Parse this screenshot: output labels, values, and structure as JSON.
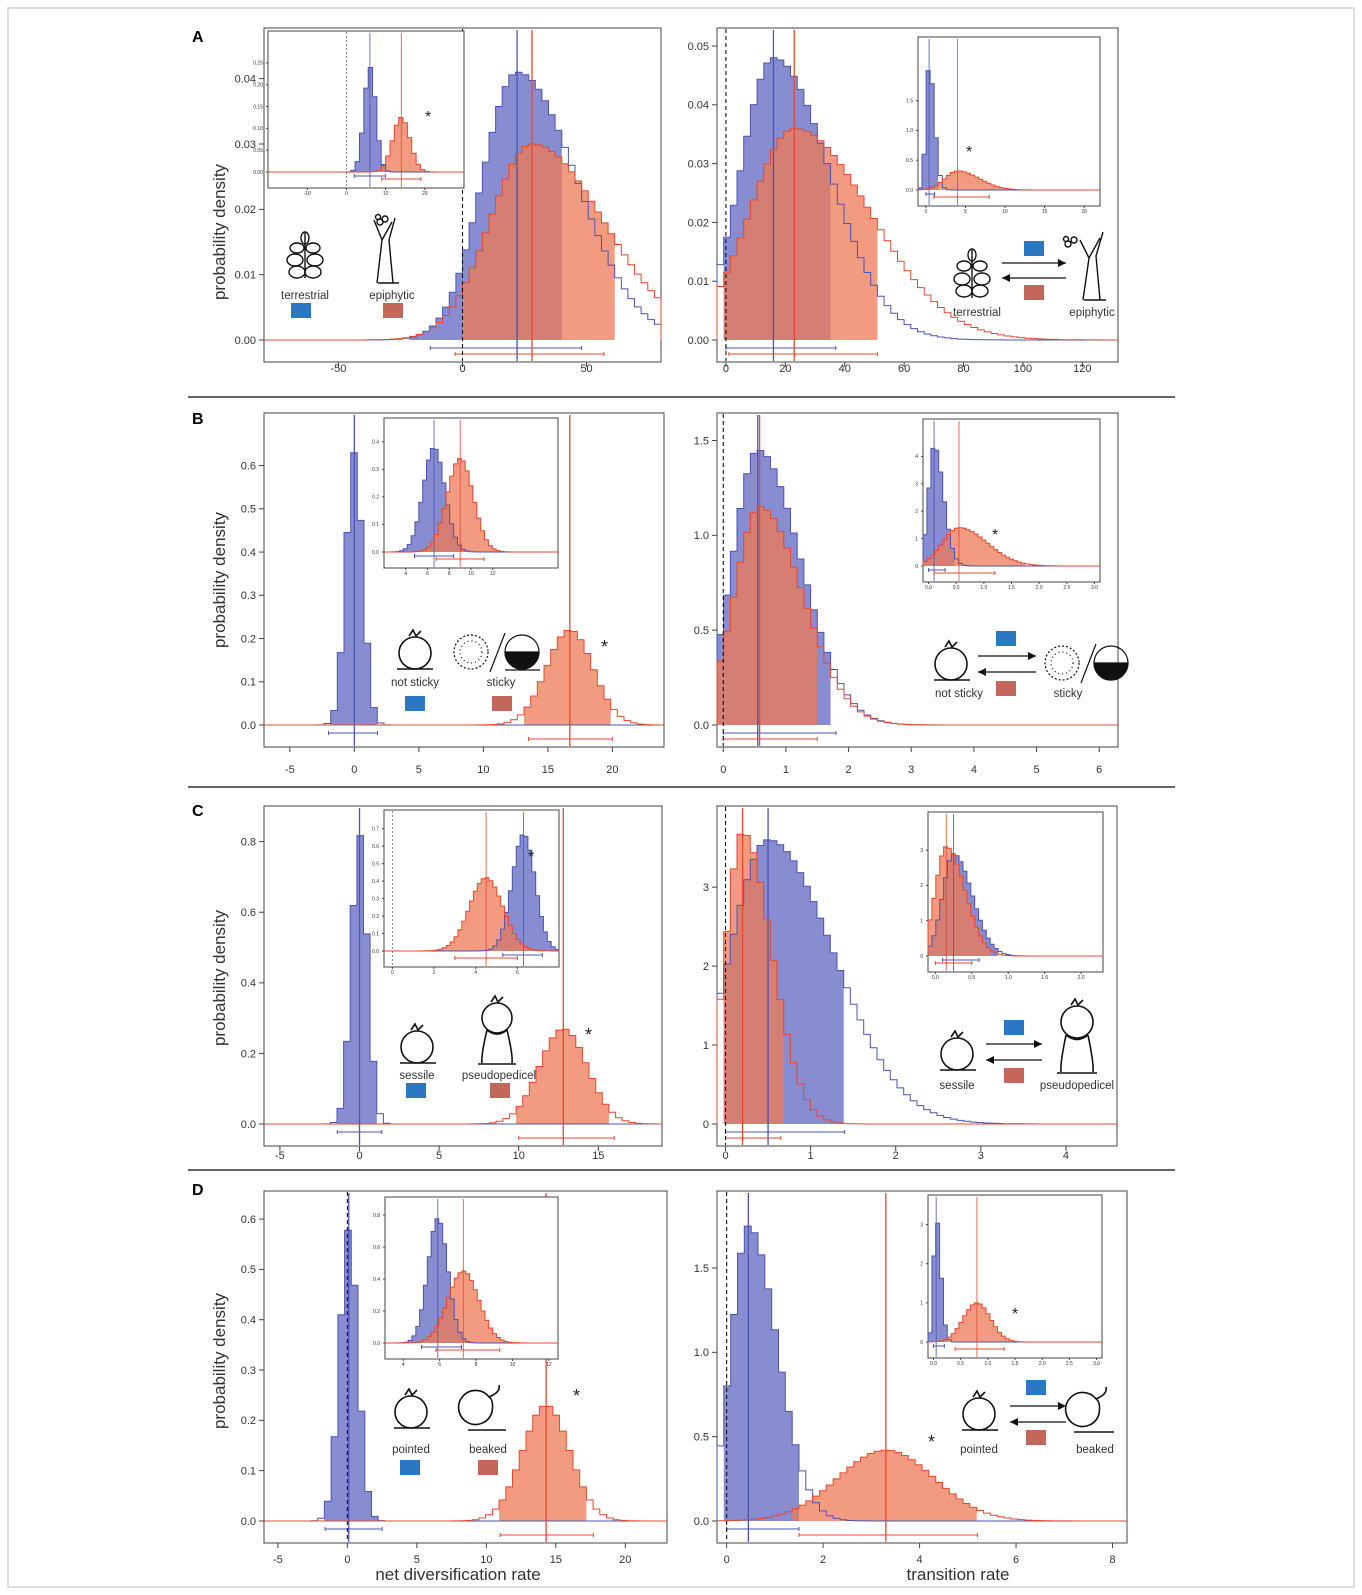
{
  "figure": {
    "axis_text": {
      "ylabel": "probability density",
      "xlabel_left": "net diversification rate",
      "xlabel_right": "transition rate"
    },
    "colors": {
      "blue": "#6a6fc4",
      "blue_line": "#4a54b3",
      "red": "#ef7a55",
      "red_line": "#e8472c",
      "overlap": "#b05266",
      "legend_blue": "#2b78c2",
      "legend_red": "#c2675a"
    },
    "panels": [
      {
        "letter": "A",
        "state0": "terrestrial",
        "state1": "epiphytic",
        "icon0": "bromeliad-rosette-icon",
        "icon1": "tree-epiphyte-icon"
      },
      {
        "letter": "B",
        "state0": "not sticky",
        "state1": "sticky",
        "icon0": "round-seed-icon",
        "icon1": "hairy-sticky-seed-icon"
      },
      {
        "letter": "C",
        "state0": "sessile",
        "state1": "pseudopedicel",
        "icon0": "round-seed-icon",
        "icon1": "pedicellate-seed-icon"
      },
      {
        "letter": "D",
        "state0": "pointed",
        "state1": "beaked",
        "icon0": "round-seed-icon",
        "icon1": "beaked-seed-icon"
      }
    ]
  },
  "chart_data": [
    {
      "id": "A-left",
      "type": "area",
      "xlim": [
        -80,
        80
      ],
      "ylim": [
        0,
        0.045
      ],
      "xticks": [
        "-50",
        "0",
        "50"
      ],
      "yticks": [
        "0.00",
        "0.01",
        "0.02",
        "0.03",
        "0.04"
      ],
      "series": [
        {
          "mean": 22,
          "sd": 14,
          "sym": false,
          "peak": 0.041,
          "lo": -13,
          "hi": 48,
          "fillFrom": -20,
          "fillTo": 42
        },
        {
          "mean": 28,
          "sd": 17,
          "sym": false,
          "peak": 0.03,
          "lo": -3,
          "hi": 57,
          "fillFrom": 0,
          "fillTo": 62
        }
      ],
      "vlines": [
        {
          "x": 0,
          "dash": true
        }
      ],
      "star": null,
      "inset": {
        "xlim": [
          -20,
          30
        ],
        "ylim": [
          0,
          0.3
        ],
        "xticks": [
          "-10",
          "0",
          "10",
          "20"
        ],
        "yticks": [
          "0.00",
          "0.05",
          "0.10",
          "0.15",
          "0.20",
          "0.25"
        ],
        "series": [
          {
            "mean": 6,
            "sd": 1.5,
            "sym": true,
            "peak": 0.24,
            "lo": 2,
            "hi": 10
          },
          {
            "mean": 14,
            "sd": 2.2,
            "sym": true,
            "peak": 0.125,
            "lo": 9,
            "hi": 19
          }
        ],
        "zero": true,
        "star": "*"
      }
    },
    {
      "id": "A-right",
      "type": "area",
      "xlim": [
        -3,
        132
      ],
      "ylim": [
        0,
        0.05
      ],
      "xticks": [
        "0",
        "20",
        "40",
        "60",
        "80",
        "100",
        "120"
      ],
      "yticks": [
        "0.00",
        "0.01",
        "0.02",
        "0.03",
        "0.04",
        "0.05"
      ],
      "series": [
        {
          "mean": 16,
          "sd": 11,
          "sym": false,
          "peak": 0.048,
          "lo": 0,
          "hi": 37,
          "fillFrom": 0,
          "fillTo": 37
        },
        {
          "mean": 23,
          "sd": 15,
          "sym": false,
          "peak": 0.036,
          "lo": 1,
          "hi": 51,
          "fillFrom": 0,
          "fillTo": 51
        }
      ],
      "vlines": [
        {
          "x": 0,
          "dash": true
        }
      ],
      "star": null,
      "inset": {
        "xlim": [
          -1,
          22
        ],
        "ylim": [
          0,
          2.4
        ],
        "xticks": [
          "0",
          "5",
          "10",
          "15",
          "20"
        ],
        "yticks": [
          "0.0",
          "0.5",
          "1.0",
          "1.5"
        ],
        "series": [
          {
            "mean": 0.4,
            "sd": 0.4,
            "sym": false,
            "peak": 2.1,
            "lo": 0,
            "hi": 1.1
          },
          {
            "mean": 4,
            "sd": 1.6,
            "sym": false,
            "peak": 0.32,
            "lo": 1,
            "hi": 8
          }
        ],
        "zero": false,
        "star": "*"
      }
    },
    {
      "id": "B-left",
      "type": "area",
      "xlim": [
        -7,
        24
      ],
      "ylim": [
        0,
        0.68
      ],
      "xticks": [
        "-5",
        "0",
        "5",
        "10",
        "15",
        "20"
      ],
      "yticks": [
        "0.0",
        "0.1",
        "0.2",
        "0.3",
        "0.4",
        "0.5",
        "0.6"
      ],
      "series": [
        {
          "mean": 0,
          "sd": 0.65,
          "sym": true,
          "peak": 0.63,
          "lo": -2,
          "hi": 1.8,
          "fillFrom": -1.8,
          "fillTo": 1.8
        },
        {
          "mean": 16.7,
          "sd": 1.8,
          "sym": true,
          "peak": 0.22,
          "lo": 13.5,
          "hi": 20,
          "fillFrom": 13.3,
          "fillTo": 20.2
        }
      ],
      "vlines": [],
      "star": "*",
      "inset": {
        "xlim": [
          2,
          18
        ],
        "ylim": [
          0,
          0.45
        ],
        "xticks": [
          "4",
          "6",
          "8",
          "10",
          "12"
        ],
        "yticks": [
          "0.0",
          "0.1",
          "0.2",
          "0.3",
          "0.4"
        ],
        "series": [
          {
            "mean": 6.6,
            "sd": 1.0,
            "sym": true,
            "peak": 0.38,
            "lo": 4.8,
            "hi": 8.4
          },
          {
            "mean": 9,
            "sd": 1.2,
            "sym": true,
            "peak": 0.34,
            "lo": 6.8,
            "hi": 11.2
          }
        ],
        "zero": false,
        "star": null
      }
    },
    {
      "id": "B-right",
      "type": "area",
      "xlim": [
        -0.1,
        6.3
      ],
      "ylim": [
        0,
        1.55
      ],
      "xticks": [
        "0",
        "1",
        "2",
        "3",
        "4",
        "5",
        "6"
      ],
      "yticks": [
        "0.0",
        "0.5",
        "1.0",
        "1.5"
      ],
      "series": [
        {
          "mean": 0.55,
          "sd": 0.4,
          "sym": false,
          "peak": 1.45,
          "lo": 0,
          "hi": 1.8,
          "fillFrom": 0,
          "fillTo": 1.8
        },
        {
          "mean": 0.58,
          "sd": 0.4,
          "sym": false,
          "peak": 1.15,
          "lo": 0,
          "hi": 1.5,
          "fillFrom": 0,
          "fillTo": 1.5
        }
      ],
      "vlines": [
        {
          "x": 0,
          "dash": true
        }
      ],
      "star": null,
      "inset": {
        "xlim": [
          -0.1,
          3.1
        ],
        "ylim": [
          0,
          5
        ],
        "xticks": [
          "0.0",
          "0.5",
          "1.0",
          "1.5",
          "2.0",
          "2.5",
          "3.0"
        ],
        "yticks": [
          "0",
          "1",
          "2",
          "3",
          "4"
        ],
        "series": [
          {
            "mean": 0.1,
            "sd": 0.1,
            "sym": false,
            "peak": 4.4,
            "lo": 0,
            "hi": 0.3
          },
          {
            "mean": 0.55,
            "sd": 0.3,
            "sym": false,
            "peak": 1.4,
            "lo": 0.1,
            "hi": 1.2
          }
        ],
        "zero": false,
        "star": "*"
      }
    },
    {
      "id": "C-left",
      "type": "area",
      "xlim": [
        -6,
        19
      ],
      "ylim": [
        0,
        0.85
      ],
      "xticks": [
        "-5",
        "0",
        "5",
        "10",
        "15"
      ],
      "yticks": [
        "0.0",
        "0.2",
        "0.4",
        "0.6",
        "0.8"
      ],
      "series": [
        {
          "mean": 0,
          "sd": 0.5,
          "sym": true,
          "peak": 0.82,
          "lo": -1.4,
          "hi": 1.4,
          "fillFrom": -1.3,
          "fillTo": 1.3
        },
        {
          "mean": 12.8,
          "sd": 1.5,
          "sym": true,
          "peak": 0.27,
          "lo": 10,
          "hi": 16,
          "fillFrom": 10,
          "fillTo": 15.8
        }
      ],
      "vlines": [],
      "star": "*",
      "inset": {
        "xlim": [
          -0.4,
          8
        ],
        "ylim": [
          0,
          0.75
        ],
        "xticks": [
          "0",
          "2",
          "4",
          "6"
        ],
        "yticks": [
          "0.0",
          "0.1",
          "0.2",
          "0.3",
          "0.4",
          "0.5",
          "0.6",
          "0.7"
        ],
        "series": [
          {
            "mean": 6.3,
            "sd": 0.55,
            "sym": true,
            "peak": 0.67,
            "lo": 5.3,
            "hi": 7.2
          },
          {
            "mean": 4.5,
            "sd": 0.8,
            "sym": true,
            "peak": 0.42,
            "lo": 3,
            "hi": 6
          }
        ],
        "zero": true,
        "star": "*"
      }
    },
    {
      "id": "C-right",
      "type": "area",
      "xlim": [
        -0.1,
        4.6
      ],
      "ylim": [
        0,
        3.8
      ],
      "xticks": [
        "0",
        "1",
        "2",
        "3",
        "4"
      ],
      "yticks": [
        "0",
        "1",
        "2",
        "3"
      ],
      "series": [
        {
          "mean": 0.5,
          "sd": 0.45,
          "sym": false,
          "peak": 3.6,
          "lo": 0,
          "hi": 1.4,
          "fillFrom": 0,
          "fillTo": 1.4
        },
        {
          "mean": 0.2,
          "sd": 0.2,
          "sym": false,
          "peak": 3.7,
          "lo": 0,
          "hi": 0.65,
          "fillFrom": 0,
          "fillTo": 0.7
        }
      ],
      "vlines": [
        {
          "x": 0,
          "dash": true
        }
      ],
      "star": null,
      "inset": {
        "xlim": [
          -0.1,
          2.3
        ],
        "ylim": [
          0,
          3.8
        ],
        "xticks": [
          "0.0",
          "0.5",
          "1.0",
          "1.5",
          "2.0"
        ],
        "yticks": [
          "0",
          "1",
          "2",
          "3"
        ],
        "series": [
          {
            "mean": 0.25,
            "sd": 0.15,
            "sym": false,
            "peak": 2.9,
            "lo": 0.1,
            "hi": 0.6
          },
          {
            "mean": 0.15,
            "sd": 0.15,
            "sym": false,
            "peak": 3.1,
            "lo": 0,
            "hi": 0.5
          }
        ],
        "zero": false,
        "star": null
      }
    },
    {
      "id": "D-left",
      "type": "area",
      "xlim": [
        -6,
        23
      ],
      "ylim": [
        0,
        0.62
      ],
      "xticks": [
        "-5",
        "0",
        "5",
        "10",
        "15",
        "20"
      ],
      "yticks": [
        "0.0",
        "0.1",
        "0.2",
        "0.3",
        "0.4",
        "0.5",
        "0.6"
      ],
      "series": [
        {
          "mean": 0.1,
          "sd": 0.65,
          "sym": true,
          "peak": 0.58,
          "lo": -1.6,
          "hi": 2.5,
          "fillFrom": -1.6,
          "fillTo": 2.4
        },
        {
          "mean": 14.3,
          "sd": 1.7,
          "sym": true,
          "peak": 0.23,
          "lo": 11,
          "hi": 17.7,
          "fillFrom": 11,
          "fillTo": 17.6
        }
      ],
      "vlines": [
        {
          "x": 0,
          "dash": true
        }
      ],
      "star": "*",
      "inset": {
        "xlim": [
          3,
          12.5
        ],
        "ylim": [
          0,
          0.85
        ],
        "xticks": [
          "4",
          "6",
          "8",
          "10",
          "12"
        ],
        "yticks": [
          "0.0",
          "0.2",
          "0.4",
          "0.6",
          "0.8"
        ],
        "series": [
          {
            "mean": 5.9,
            "sd": 0.55,
            "sym": true,
            "peak": 0.78,
            "lo": 5,
            "hi": 7.2
          },
          {
            "mean": 7.3,
            "sd": 0.85,
            "sym": true,
            "peak": 0.45,
            "lo": 5.8,
            "hi": 9.3
          }
        ],
        "zero": false,
        "star": null
      }
    },
    {
      "id": "D-right",
      "type": "area",
      "xlim": [
        -0.2,
        8.3
      ],
      "ylim": [
        0,
        1.85
      ],
      "xticks": [
        "0",
        "2",
        "4",
        "6",
        "8"
      ],
      "yticks": [
        "0.0",
        "0.5",
        "1.0",
        "1.5"
      ],
      "series": [
        {
          "mean": 0.45,
          "sd": 0.35,
          "sym": false,
          "peak": 1.75,
          "lo": 0,
          "hi": 1.5,
          "fillFrom": 0,
          "fillTo": 1.5
        },
        {
          "mean": 3.3,
          "sd": 1.0,
          "sym": true,
          "peak": 0.42,
          "lo": 1.5,
          "hi": 5.2,
          "fillFrom": 1.5,
          "fillTo": 5.2
        }
      ],
      "vlines": [
        {
          "x": 0,
          "dash": true
        }
      ],
      "star": "*",
      "inset": {
        "xlim": [
          -0.1,
          3.1
        ],
        "ylim": [
          0,
          3.5
        ],
        "xticks": [
          "0.0",
          "0.5",
          "1.0",
          "1.5",
          "2.0",
          "2.5",
          "3.0"
        ],
        "yticks": [
          "0",
          "1",
          "2",
          "3"
        ],
        "series": [
          {
            "mean": 0.05,
            "sd": 0.05,
            "sym": false,
            "peak": 3.2,
            "lo": 0,
            "hi": 0.2
          },
          {
            "mean": 0.8,
            "sd": 0.25,
            "sym": true,
            "peak": 1.0,
            "lo": 0.4,
            "hi": 1.3
          }
        ],
        "zero": false,
        "star": "*"
      }
    }
  ]
}
